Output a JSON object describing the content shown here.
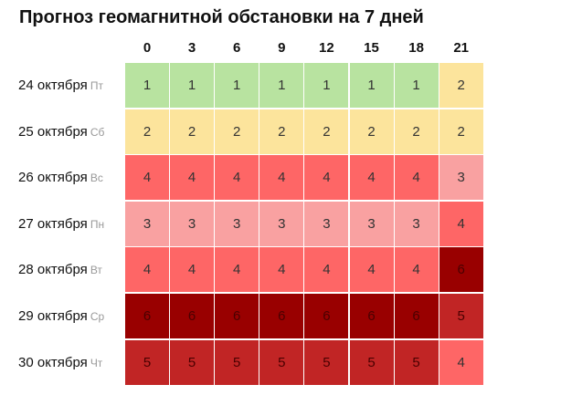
{
  "title": "Прогноз геомагнитной обстановки на 7 дней",
  "chart_data": {
    "type": "heatmap",
    "title": "Прогноз геомагнитной обстановки на 7 дней",
    "columns": [
      "0",
      "3",
      "6",
      "9",
      "12",
      "15",
      "18",
      "21"
    ],
    "rows": [
      {
        "date": "24 октября",
        "dow": "Пт",
        "values": [
          1,
          1,
          1,
          1,
          1,
          1,
          1,
          2
        ]
      },
      {
        "date": "25 октября",
        "dow": "Сб",
        "values": [
          2,
          2,
          2,
          2,
          2,
          2,
          2,
          2
        ]
      },
      {
        "date": "26 октября",
        "dow": "Вс",
        "values": [
          4,
          4,
          4,
          4,
          4,
          4,
          4,
          3
        ]
      },
      {
        "date": "27 октября",
        "dow": "Пн",
        "values": [
          3,
          3,
          3,
          3,
          3,
          3,
          3,
          4
        ]
      },
      {
        "date": "28 октября",
        "dow": "Вт",
        "values": [
          4,
          4,
          4,
          4,
          4,
          4,
          4,
          6
        ]
      },
      {
        "date": "29 октября",
        "dow": "Ср",
        "values": [
          6,
          6,
          6,
          6,
          6,
          6,
          6,
          5
        ]
      },
      {
        "date": "30 октября",
        "dow": "Чт",
        "values": [
          5,
          5,
          5,
          5,
          5,
          5,
          5,
          4
        ]
      }
    ],
    "colors": {
      "1": "#b8e3a0",
      "2": "#fce49c",
      "3": "#f9a1a1",
      "4": "#fe6666",
      "5": "#c12525",
      "6": "#990000"
    }
  }
}
